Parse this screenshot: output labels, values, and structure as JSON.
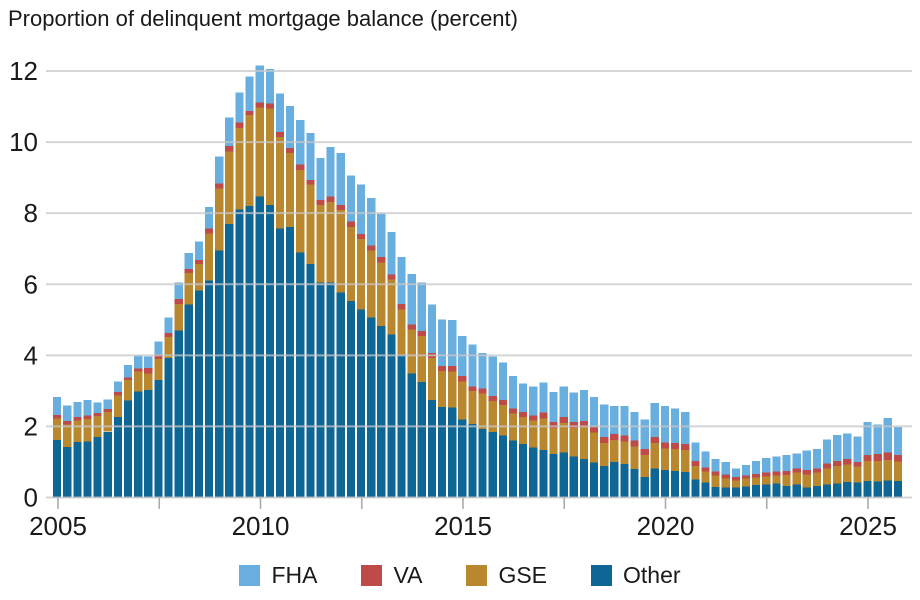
{
  "title": "Proportion of delinquent mortgage balance (percent)",
  "y_axis": {
    "ticks": [
      0,
      2,
      4,
      6,
      8,
      10,
      12
    ]
  },
  "x_axis": {
    "major_tick_labels": [
      "2005",
      "2010",
      "2015",
      "2020",
      "2025"
    ]
  },
  "legend": [
    {
      "label": "FHA",
      "color": "#68AFE0"
    },
    {
      "label": "VA",
      "color": "#BE4B48"
    },
    {
      "label": "GSE",
      "color": "#B8872E"
    },
    {
      "label": "Other",
      "color": "#0E6694"
    }
  ],
  "chart_data": {
    "type": "bar",
    "stacked": true,
    "title": "Proportion of delinquent mortgage balance (percent)",
    "xlabel": "",
    "ylabel": "percent",
    "ylim": [
      0,
      12
    ],
    "grid": "horizontal",
    "legend_position": "bottom",
    "quarters": [
      "2004 Q4",
      "2005 Q1",
      "2005 Q2",
      "2005 Q3",
      "2005 Q4",
      "2006 Q1",
      "2006 Q2",
      "2006 Q3",
      "2006 Q4",
      "2007 Q1",
      "2007 Q2",
      "2007 Q3",
      "2007 Q4",
      "2008 Q1",
      "2008 Q2",
      "2008 Q3",
      "2008 Q4",
      "2009 Q1",
      "2009 Q2",
      "2009 Q3",
      "2009 Q4",
      "2010 Q1",
      "2010 Q2",
      "2010 Q3",
      "2010 Q4",
      "2011 Q1",
      "2011 Q2",
      "2011 Q3",
      "2011 Q4",
      "2012 Q1",
      "2012 Q2",
      "2012 Q3",
      "2012 Q4",
      "2013 Q1",
      "2013 Q2",
      "2013 Q3",
      "2013 Q4",
      "2014 Q1",
      "2014 Q2",
      "2014 Q3",
      "2014 Q4",
      "2015 Q1",
      "2015 Q2",
      "2015 Q3",
      "2015 Q4",
      "2016 Q1",
      "2016 Q2",
      "2016 Q3",
      "2016 Q4",
      "2017 Q1",
      "2017 Q2",
      "2017 Q3",
      "2017 Q4",
      "2018 Q1",
      "2018 Q2",
      "2018 Q3",
      "2018 Q4",
      "2019 Q1",
      "2019 Q2",
      "2019 Q3",
      "2019 Q4",
      "2020 Q1",
      "2020 Q2",
      "2020 Q3",
      "2020 Q4",
      "2021 Q1",
      "2021 Q2",
      "2021 Q3",
      "2021 Q4",
      "2022 Q1",
      "2022 Q2",
      "2022 Q3",
      "2022 Q4",
      "2023 Q1",
      "2023 Q2",
      "2023 Q3",
      "2023 Q4",
      "2024 Q1",
      "2024 Q2",
      "2024 Q3",
      "2024 Q4",
      "2025 Q1",
      "2025 Q2",
      "2025 Q3"
    ],
    "series": [
      {
        "name": "Other",
        "color": "#0E6694",
        "values": [
          1.62,
          1.42,
          1.56,
          1.57,
          1.7,
          1.85,
          2.27,
          2.73,
          2.98,
          3.02,
          3.3,
          3.92,
          4.7,
          5.43,
          5.83,
          6.1,
          6.95,
          7.69,
          8.1,
          8.2,
          8.47,
          8.23,
          7.57,
          7.61,
          6.9,
          6.57,
          6.05,
          6.05,
          5.77,
          5.53,
          5.29,
          5.06,
          4.82,
          4.58,
          4.01,
          3.49,
          3.25,
          2.74,
          2.55,
          2.53,
          2.19,
          2.07,
          1.93,
          1.84,
          1.74,
          1.6,
          1.51,
          1.41,
          1.34,
          1.22,
          1.27,
          1.15,
          1.08,
          0.99,
          0.89,
          1.0,
          0.94,
          0.8,
          0.58,
          0.81,
          0.77,
          0.75,
          0.72,
          0.51,
          0.42,
          0.3,
          0.28,
          0.28,
          0.31,
          0.35,
          0.37,
          0.39,
          0.33,
          0.37,
          0.28,
          0.32,
          0.36,
          0.4,
          0.44,
          0.42,
          0.47,
          0.45,
          0.48,
          0.46
        ]
      },
      {
        "name": "GSE",
        "color": "#B8872E",
        "values": [
          0.6,
          0.63,
          0.6,
          0.64,
          0.6,
          0.56,
          0.6,
          0.57,
          0.57,
          0.47,
          0.59,
          0.59,
          0.75,
          0.88,
          0.74,
          1.33,
          1.75,
          2.05,
          2.3,
          2.56,
          2.5,
          2.72,
          2.57,
          2.09,
          2.32,
          2.23,
          2.18,
          2.27,
          2.32,
          2.08,
          1.99,
          1.89,
          1.79,
          1.56,
          1.28,
          1.24,
          1.3,
          1.18,
          1.01,
          1.02,
          1.08,
          0.92,
          0.99,
          0.87,
          0.86,
          0.76,
          0.75,
          0.76,
          0.88,
          0.73,
          0.82,
          0.8,
          0.9,
          0.84,
          0.64,
          0.62,
          0.63,
          0.63,
          0.61,
          0.72,
          0.61,
          0.62,
          0.62,
          0.38,
          0.31,
          0.32,
          0.26,
          0.2,
          0.22,
          0.21,
          0.22,
          0.23,
          0.3,
          0.33,
          0.37,
          0.38,
          0.46,
          0.49,
          0.49,
          0.45,
          0.56,
          0.58,
          0.57,
          0.55
        ]
      },
      {
        "name": "VA",
        "color": "#BE4B48",
        "values": [
          0.1,
          0.1,
          0.1,
          0.1,
          0.08,
          0.08,
          0.1,
          0.08,
          0.08,
          0.15,
          0.13,
          0.12,
          0.13,
          0.12,
          0.11,
          0.14,
          0.14,
          0.15,
          0.15,
          0.12,
          0.15,
          0.14,
          0.14,
          0.14,
          0.15,
          0.14,
          0.14,
          0.15,
          0.14,
          0.15,
          0.14,
          0.14,
          0.15,
          0.14,
          0.15,
          0.14,
          0.14,
          0.14,
          0.14,
          0.15,
          0.15,
          0.14,
          0.15,
          0.14,
          0.14,
          0.14,
          0.15,
          0.14,
          0.17,
          0.17,
          0.17,
          0.17,
          0.17,
          0.17,
          0.17,
          0.17,
          0.17,
          0.17,
          0.17,
          0.17,
          0.17,
          0.17,
          0.16,
          0.14,
          0.11,
          0.11,
          0.11,
          0.1,
          0.09,
          0.1,
          0.11,
          0.11,
          0.12,
          0.11,
          0.13,
          0.11,
          0.14,
          0.14,
          0.15,
          0.13,
          0.16,
          0.19,
          0.22,
          0.19
        ]
      },
      {
        "name": "FHA",
        "color": "#68AFE0",
        "values": [
          0.51,
          0.44,
          0.43,
          0.43,
          0.29,
          0.27,
          0.29,
          0.35,
          0.36,
          0.33,
          0.37,
          0.43,
          0.47,
          0.45,
          0.52,
          0.61,
          0.76,
          0.8,
          0.85,
          0.97,
          1.03,
          0.96,
          1.09,
          1.18,
          1.25,
          1.32,
          1.18,
          1.39,
          1.47,
          1.3,
          1.38,
          1.33,
          1.23,
          1.19,
          1.32,
          1.42,
          1.36,
          1.37,
          1.31,
          1.29,
          1.12,
          1.17,
          0.99,
          1.12,
          1.06,
          0.92,
          0.8,
          0.81,
          0.84,
          0.85,
          0.86,
          0.83,
          0.87,
          0.83,
          0.92,
          0.78,
          0.83,
          0.81,
          0.83,
          0.96,
          1.02,
          0.96,
          0.91,
          0.52,
          0.46,
          0.35,
          0.35,
          0.24,
          0.3,
          0.37,
          0.41,
          0.42,
          0.44,
          0.43,
          0.54,
          0.55,
          0.67,
          0.73,
          0.72,
          0.71,
          0.93,
          0.84,
          0.97,
          0.78
        ]
      }
    ]
  },
  "colors": {
    "text": "#1A1A1A",
    "gridline": "#C8C8C8",
    "tick": "#ABABAB",
    "background": "#FFFFFF"
  }
}
